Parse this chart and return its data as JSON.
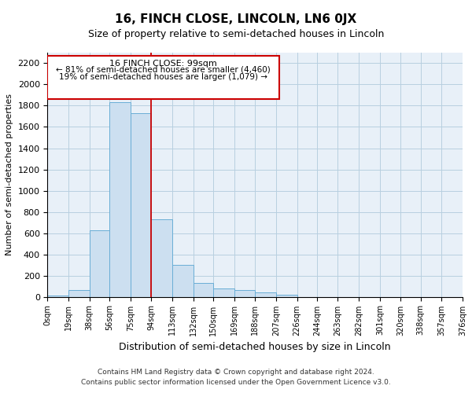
{
  "title": "16, FINCH CLOSE, LINCOLN, LN6 0JX",
  "subtitle": "Size of property relative to semi-detached houses in Lincoln",
  "xlabel": "Distribution of semi-detached houses by size in Lincoln",
  "ylabel": "Number of semi-detached properties",
  "annotation_title": "16 FINCH CLOSE: 99sqm",
  "annotation_line1": "← 81% of semi-detached houses are smaller (4,460)",
  "annotation_line2": "19% of semi-detached houses are larger (1,079) →",
  "footer1": "Contains HM Land Registry data © Crown copyright and database right 2024.",
  "footer2": "Contains public sector information licensed under the Open Government Licence v3.0.",
  "bin_edges": [
    0,
    19,
    38,
    56,
    75,
    94,
    113,
    132,
    150,
    169,
    188,
    207,
    226,
    244,
    263,
    282,
    301,
    320,
    338,
    357,
    376
  ],
  "bin_labels": [
    "0sqm",
    "19sqm",
    "38sqm",
    "56sqm",
    "75sqm",
    "94sqm",
    "113sqm",
    "132sqm",
    "150sqm",
    "169sqm",
    "188sqm",
    "207sqm",
    "226sqm",
    "244sqm",
    "263sqm",
    "282sqm",
    "301sqm",
    "320sqm",
    "338sqm",
    "357sqm",
    "376sqm"
  ],
  "bar_heights": [
    15,
    65,
    630,
    1830,
    1730,
    730,
    300,
    130,
    75,
    65,
    40,
    20,
    0,
    0,
    0,
    0,
    0,
    0,
    0,
    0
  ],
  "bar_color": "#ccdff0",
  "bar_edge_color": "#6aaed6",
  "vline_x": 94,
  "vline_color": "#cc0000",
  "annotation_box_color": "#cc0000",
  "grid_color": "#b8cfe0",
  "background_color": "#e8f0f8",
  "ylim": [
    0,
    2300
  ],
  "yticks": [
    0,
    200,
    400,
    600,
    800,
    1000,
    1200,
    1400,
    1600,
    1800,
    2000,
    2200
  ],
  "title_fontsize": 11,
  "subtitle_fontsize": 9
}
